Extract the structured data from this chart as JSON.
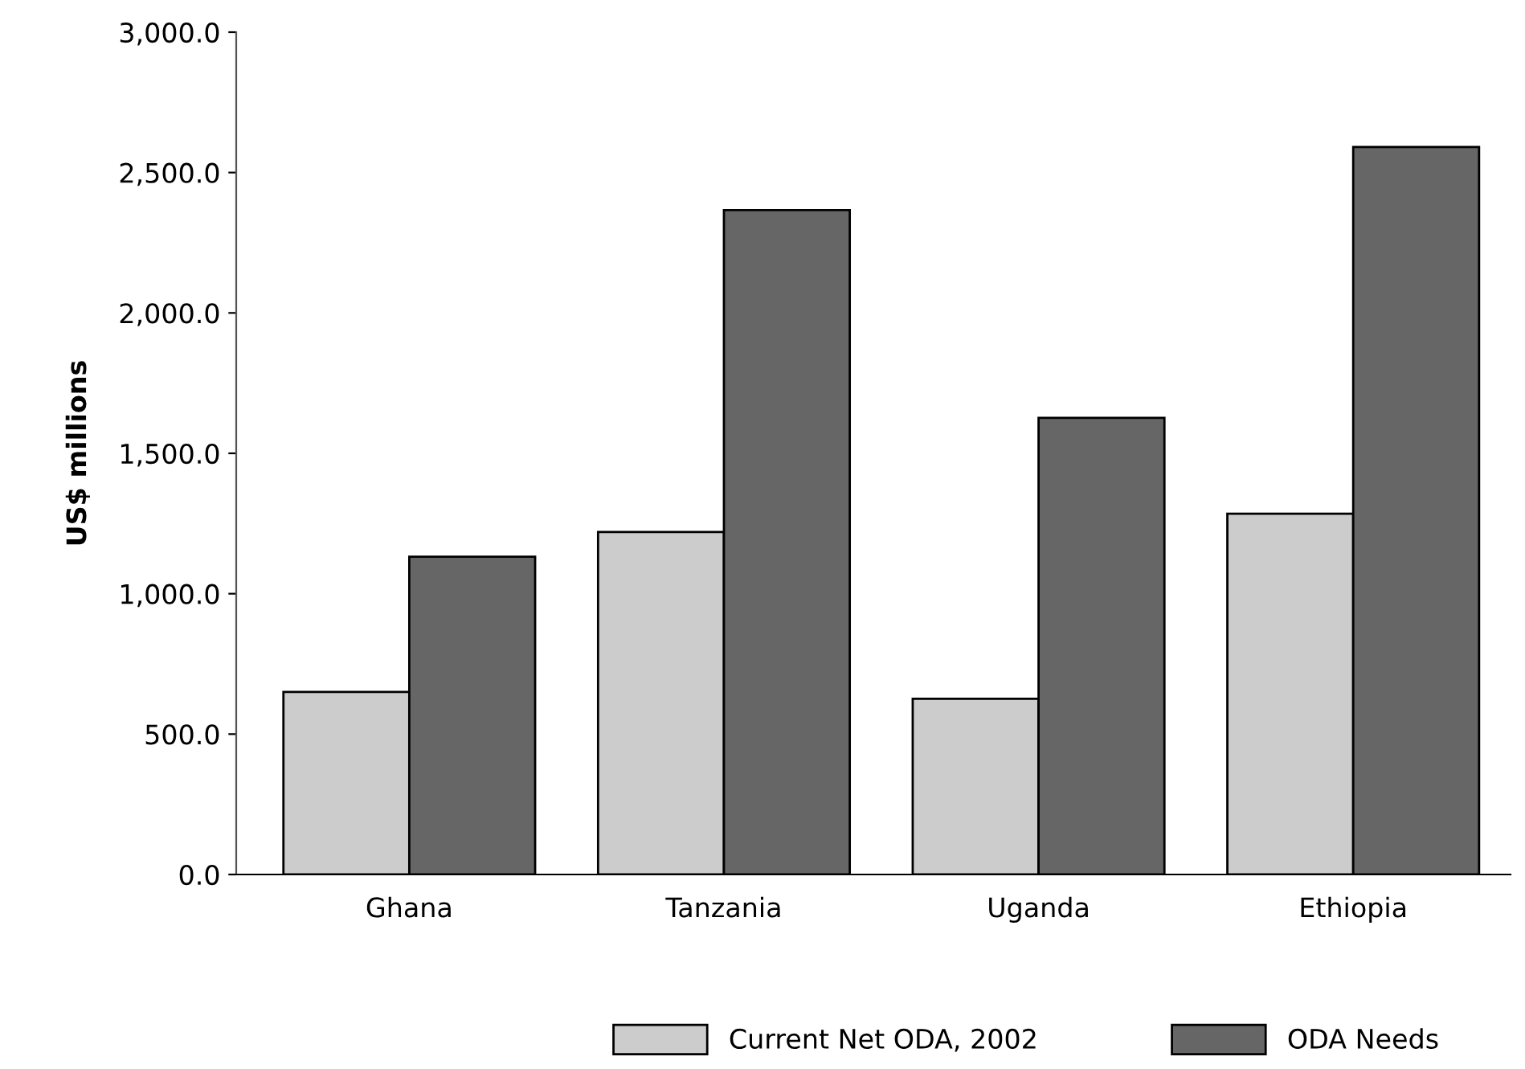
{
  "chart_data": {
    "type": "bar",
    "ylabel": "US$ millions",
    "categories": [
      "Ghana",
      "Tanzania",
      "Uganda",
      "Ethiopia"
    ],
    "series": [
      {
        "name": "Current Net ODA, 2002",
        "color": "#cccccc",
        "values": [
          650,
          1220,
          626,
          1285
        ]
      },
      {
        "name": "ODA Needs",
        "color": "#666666",
        "values": [
          1132,
          2366,
          1626,
          2591
        ]
      }
    ],
    "ylim": [
      0,
      3000
    ],
    "yticks": [
      {
        "value": 0,
        "label": "0.0"
      },
      {
        "value": 500,
        "label": "500.0"
      },
      {
        "value": 1000,
        "label": "1,000.0"
      },
      {
        "value": 1500,
        "label": "1,500.0"
      },
      {
        "value": 2000,
        "label": "2,000.0"
      },
      {
        "value": 2500,
        "label": "2,500.0"
      },
      {
        "value": 3000,
        "label": "3,000.0"
      }
    ],
    "grid": false,
    "legend": "bottom"
  }
}
